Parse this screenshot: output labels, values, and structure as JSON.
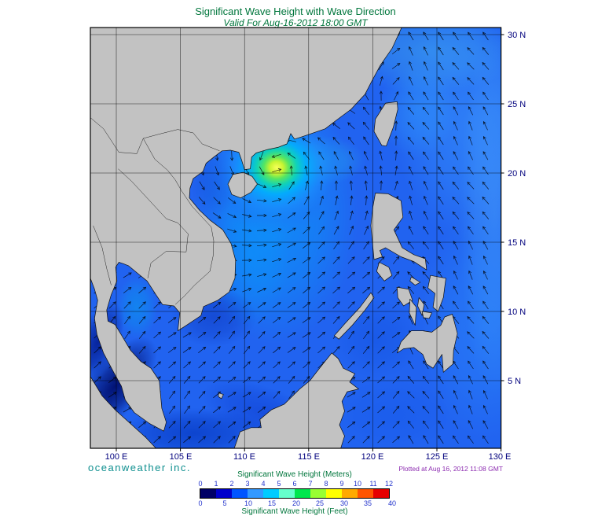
{
  "header": {
    "title": "Significant Wave Height with Wave Direction",
    "subtitle": "Valid For Aug-16-2012 18:00 GMT"
  },
  "map": {
    "x_tick_labels": [
      "100 E",
      "105 E",
      "110 E",
      "115 E",
      "120 E",
      "125 E",
      "130 E"
    ],
    "y_tick_labels": [
      "30 N",
      "25 N",
      "20 N",
      "15 N",
      "10 N",
      "5 N"
    ]
  },
  "footer": {
    "brand": "oceanweather inc.",
    "plotted": "Plotted at Aug 16, 2012 11:08 GMT"
  },
  "legend": {
    "meters_title": "Significant Wave Height (Meters)",
    "feet_title": "Significant Wave Height (Feet)",
    "meters_ticks": [
      "0",
      "1",
      "2",
      "3",
      "4",
      "5",
      "6",
      "7",
      "8",
      "9",
      "10",
      "11",
      "12"
    ],
    "feet_ticks": [
      "0",
      "5",
      "10",
      "15",
      "20",
      "25",
      "30",
      "35",
      "40"
    ],
    "colors": [
      "#000066",
      "#0000cc",
      "#0055ff",
      "#3399ff",
      "#00ccff",
      "#66ffcc",
      "#00e64d",
      "#99ff33",
      "#ffff00",
      "#ffaa00",
      "#ff5500",
      "#e60000"
    ]
  },
  "colors": {
    "title_green": "#00763c",
    "axis_navy": "#00007d",
    "brand_teal": "#0e8f8f",
    "plotted_purple": "#8c2bb0",
    "land": "#c2c2c2",
    "ocean_base": "#2163f0",
    "arrow": "#000000"
  }
}
